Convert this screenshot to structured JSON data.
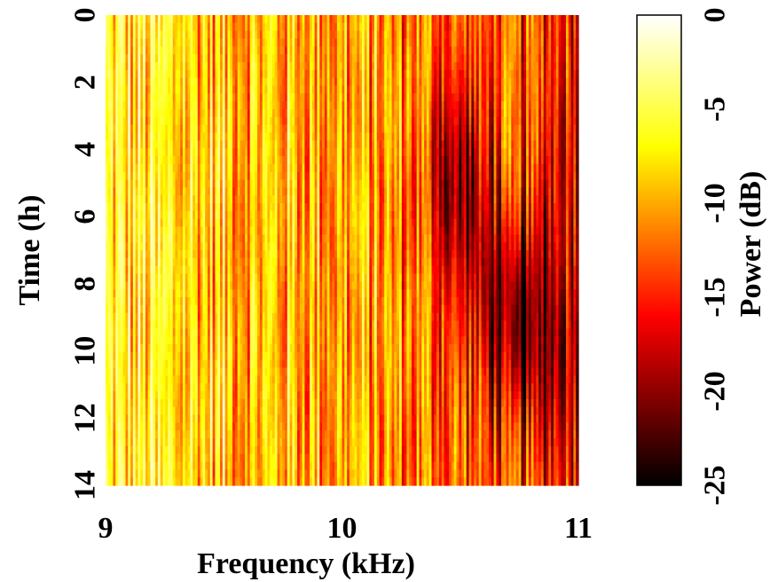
{
  "chart_data": {
    "type": "heatmap",
    "title": "",
    "xlabel": "Frequency (kHz)",
    "ylabel": "Time (h)",
    "xlim": [
      9,
      11
    ],
    "ylim": [
      0,
      14
    ],
    "y_direction": "top-to-bottom",
    "x_ticks": [
      "9",
      "10",
      "11"
    ],
    "y_ticks": [
      "0",
      "2",
      "4",
      "6",
      "8",
      "10",
      "12",
      "14"
    ],
    "colorbar": {
      "label": "Power (dB)",
      "range": [
        -25,
        0
      ],
      "ticks": [
        "0",
        "-5",
        "-10",
        "-15",
        "-20",
        "-25"
      ],
      "colormap": "hot",
      "colors": [
        "#000000",
        "#ff0000",
        "#ffff00",
        "#ffffff"
      ]
    },
    "description_of_values": {
      "background_level_db_at_9kHz": -7,
      "background_level_db_at_10kHz": -10,
      "background_level_db_at_11kHz": -15,
      "minimum_region": {
        "frequency_khz": 10.75,
        "time_h": 9,
        "power_db": -23
      },
      "secondary_minimum": {
        "frequency_khz": 10.5,
        "time_h": 5,
        "power_db": -21
      }
    }
  }
}
